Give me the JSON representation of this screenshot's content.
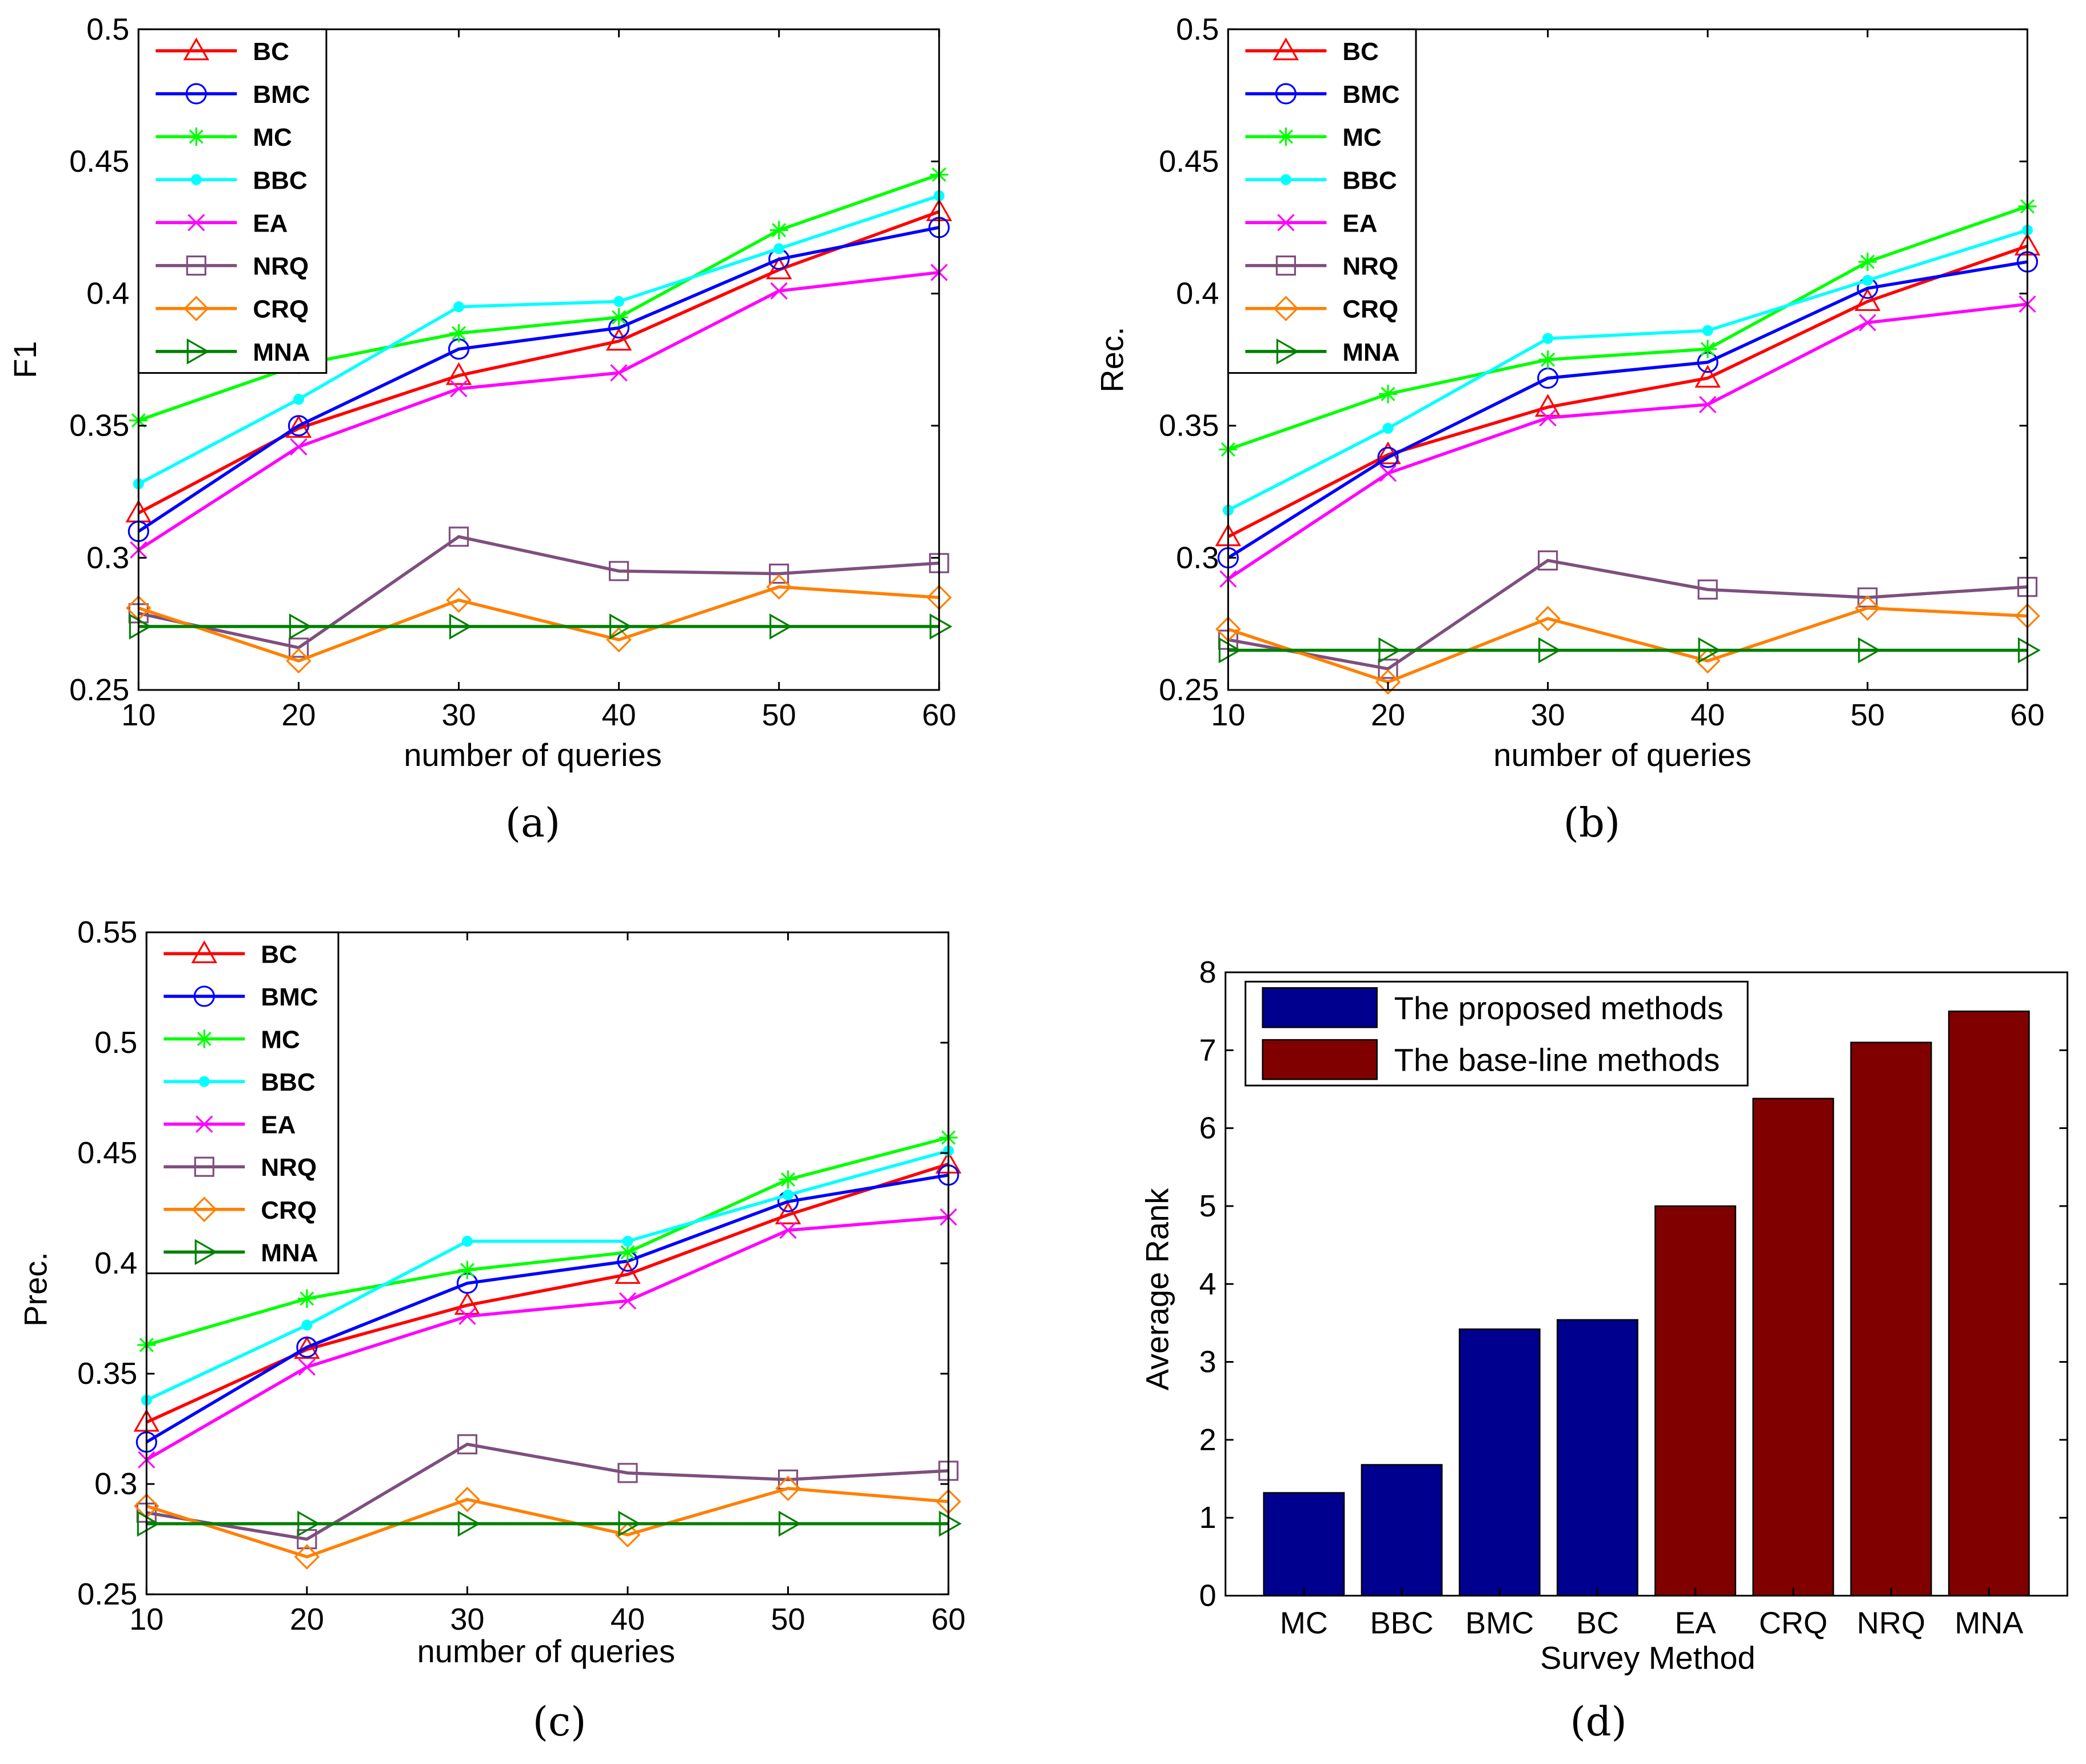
{
  "chart_data": [
    {
      "type": "line",
      "caption": "(a)",
      "xlabel": "number of queries",
      "ylabel": "F1",
      "x": [
        10,
        20,
        30,
        40,
        50,
        60
      ],
      "xlim": [
        10,
        60
      ],
      "ylim": [
        0.25,
        0.5
      ],
      "xticks": [
        "10",
        "20",
        "30",
        "40",
        "50",
        "60"
      ],
      "yticks": [
        "0.25",
        "0.3",
        "0.35",
        "0.4",
        "0.45",
        "0.5"
      ],
      "legend_position": "top-left",
      "series": [
        {
          "name": "BC",
          "color": "#ff0000",
          "marker": "triangle-up",
          "values": [
            0.317,
            0.349,
            0.369,
            0.382,
            0.409,
            0.431
          ]
        },
        {
          "name": "BMC",
          "color": "#0000ff",
          "marker": "circle",
          "values": [
            0.31,
            0.35,
            0.379,
            0.387,
            0.413,
            0.425
          ]
        },
        {
          "name": "MC",
          "color": "#00ff00",
          "marker": "asterisk",
          "values": [
            0.352,
            0.373,
            0.385,
            0.391,
            0.424,
            0.445
          ]
        },
        {
          "name": "BBC",
          "color": "#00ffff",
          "marker": "dot",
          "values": [
            0.328,
            0.36,
            0.395,
            0.397,
            0.417,
            0.437
          ]
        },
        {
          "name": "EA",
          "color": "#ff00ff",
          "marker": "x",
          "values": [
            0.303,
            0.342,
            0.364,
            0.37,
            0.401,
            0.408
          ]
        },
        {
          "name": "NRQ",
          "color": "#7e4f7e",
          "marker": "square",
          "values": [
            0.279,
            0.266,
            0.308,
            0.295,
            0.294,
            0.298
          ]
        },
        {
          "name": "CRQ",
          "color": "#ff8000",
          "marker": "diamond",
          "values": [
            0.281,
            0.261,
            0.284,
            0.269,
            0.289,
            0.285
          ]
        },
        {
          "name": "MNA",
          "color": "#008000",
          "marker": "triangle-right",
          "values": [
            0.274,
            0.274,
            0.274,
            0.274,
            0.274,
            0.274
          ]
        }
      ]
    },
    {
      "type": "line",
      "caption": "(b)",
      "xlabel": "number of queries",
      "ylabel": "Rec.",
      "x": [
        10,
        20,
        30,
        40,
        50,
        60
      ],
      "xlim": [
        10,
        60
      ],
      "ylim": [
        0.25,
        0.5
      ],
      "xticks": [
        "10",
        "20",
        "30",
        "40",
        "50",
        "60"
      ],
      "yticks": [
        "0.25",
        "0.3",
        "0.35",
        "0.4",
        "0.45",
        "0.5"
      ],
      "legend_position": "top-left",
      "series": [
        {
          "name": "BC",
          "color": "#ff0000",
          "marker": "triangle-up",
          "values": [
            0.308,
            0.339,
            0.357,
            0.368,
            0.397,
            0.418
          ]
        },
        {
          "name": "BMC",
          "color": "#0000ff",
          "marker": "circle",
          "values": [
            0.3,
            0.338,
            0.368,
            0.374,
            0.402,
            0.412
          ]
        },
        {
          "name": "MC",
          "color": "#00ff00",
          "marker": "asterisk",
          "values": [
            0.341,
            0.362,
            0.375,
            0.379,
            0.412,
            0.433
          ]
        },
        {
          "name": "BBC",
          "color": "#00ffff",
          "marker": "dot",
          "values": [
            0.318,
            0.349,
            0.383,
            0.386,
            0.405,
            0.424
          ]
        },
        {
          "name": "EA",
          "color": "#ff00ff",
          "marker": "x",
          "values": [
            0.292,
            0.332,
            0.353,
            0.358,
            0.389,
            0.396
          ]
        },
        {
          "name": "NRQ",
          "color": "#7e4f7e",
          "marker": "square",
          "values": [
            0.269,
            0.258,
            0.299,
            0.288,
            0.285,
            0.289
          ]
        },
        {
          "name": "CRQ",
          "color": "#ff8000",
          "marker": "diamond",
          "values": [
            0.273,
            0.253,
            0.277,
            0.261,
            0.281,
            0.278
          ]
        },
        {
          "name": "MNA",
          "color": "#008000",
          "marker": "triangle-right",
          "values": [
            0.265,
            0.265,
            0.265,
            0.265,
            0.265,
            0.265
          ]
        }
      ]
    },
    {
      "type": "line",
      "caption": "(c)",
      "xlabel": "number of queries",
      "ylabel": "Prec.",
      "x": [
        10,
        20,
        30,
        40,
        50,
        60
      ],
      "xlim": [
        10,
        60
      ],
      "ylim": [
        0.25,
        0.55
      ],
      "xticks": [
        "10",
        "20",
        "30",
        "40",
        "50",
        "60"
      ],
      "yticks": [
        "0.25",
        "0.3",
        "0.35",
        "0.4",
        "0.45",
        "0.5",
        "0.55"
      ],
      "legend_position": "top-left",
      "series": [
        {
          "name": "BC",
          "color": "#ff0000",
          "marker": "triangle-up",
          "values": [
            0.328,
            0.361,
            0.381,
            0.395,
            0.422,
            0.445
          ]
        },
        {
          "name": "BMC",
          "color": "#0000ff",
          "marker": "circle",
          "values": [
            0.319,
            0.362,
            0.391,
            0.401,
            0.428,
            0.44
          ]
        },
        {
          "name": "MC",
          "color": "#00ff00",
          "marker": "asterisk",
          "values": [
            0.363,
            0.384,
            0.397,
            0.405,
            0.438,
            0.457
          ]
        },
        {
          "name": "BBC",
          "color": "#00ffff",
          "marker": "dot",
          "values": [
            0.338,
            0.372,
            0.41,
            0.41,
            0.431,
            0.451
          ]
        },
        {
          "name": "EA",
          "color": "#ff00ff",
          "marker": "x",
          "values": [
            0.311,
            0.353,
            0.376,
            0.383,
            0.415,
            0.421
          ]
        },
        {
          "name": "NRQ",
          "color": "#7e4f7e",
          "marker": "square",
          "values": [
            0.287,
            0.275,
            0.318,
            0.305,
            0.302,
            0.306
          ]
        },
        {
          "name": "CRQ",
          "color": "#ff8000",
          "marker": "diamond",
          "values": [
            0.29,
            0.267,
            0.293,
            0.277,
            0.298,
            0.292
          ]
        },
        {
          "name": "MNA",
          "color": "#008000",
          "marker": "triangle-right",
          "values": [
            0.282,
            0.282,
            0.282,
            0.282,
            0.282,
            0.282
          ]
        }
      ]
    },
    {
      "type": "bar",
      "caption": "(d)",
      "xlabel": "Survey Method",
      "ylabel": "Average Rank",
      "categories": [
        "MC",
        "BBC",
        "BMC",
        "BC",
        "EA",
        "CRQ",
        "NRQ",
        "MNA"
      ],
      "values": [
        1.32,
        1.68,
        3.42,
        3.54,
        5.0,
        6.38,
        7.1,
        7.5
      ],
      "groups": [
        "The proposed methods",
        "The proposed methods",
        "The proposed methods",
        "The proposed methods",
        "The base-line methods",
        "The base-line methods",
        "The base-line methods",
        "The base-line methods"
      ],
      "ylim": [
        0,
        8
      ],
      "yticks": [
        "0",
        "1",
        "2",
        "3",
        "4",
        "5",
        "6",
        "7",
        "8"
      ],
      "legend_position": "top-left",
      "legend": [
        {
          "name": "The proposed methods",
          "color": "#00008f"
        },
        {
          "name": "The base-line methods",
          "color": "#800000"
        }
      ]
    }
  ]
}
